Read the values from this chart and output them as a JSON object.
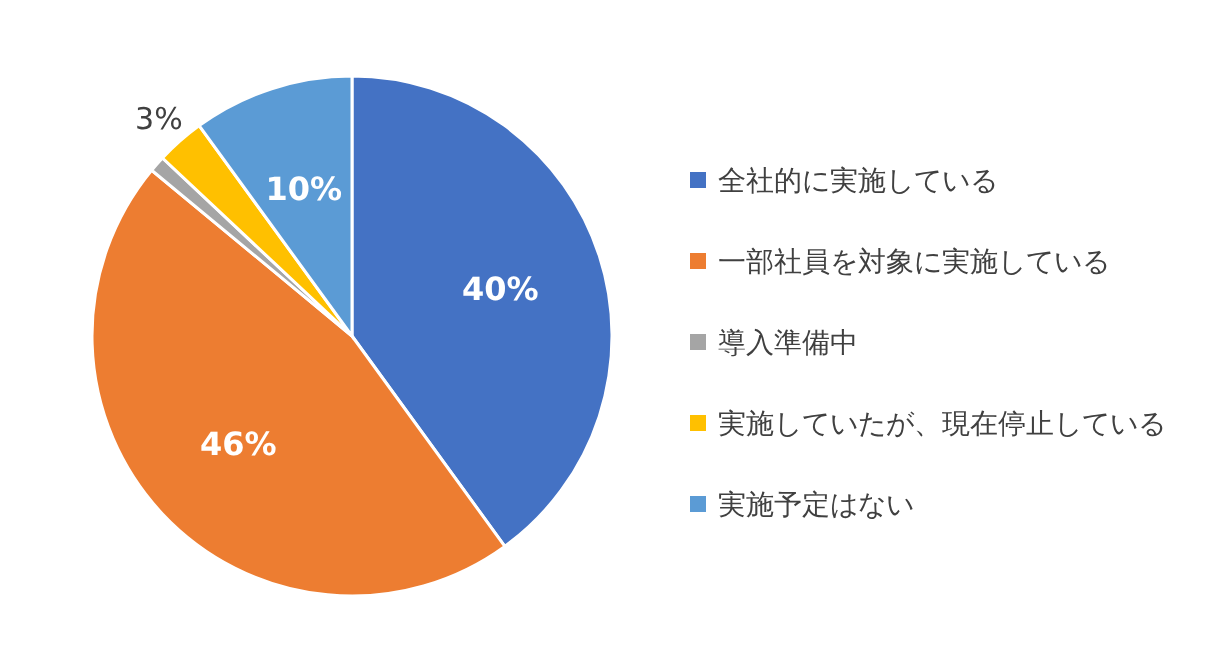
{
  "chart_data": {
    "type": "pie",
    "categories": [
      "全社的に実施している",
      "一部社員を対象に実施している",
      "導入準備中",
      "実施していたが、現在停止している",
      "実施予定はない"
    ],
    "values": [
      40,
      46,
      1,
      3,
      10
    ],
    "colors": [
      "#4472c4",
      "#ed7d31",
      "#a5a5a5",
      "#ffc000",
      "#5b9bd5"
    ],
    "value_labels": [
      "40%",
      "46%",
      null,
      "3%",
      "10%"
    ],
    "legend": "right"
  }
}
